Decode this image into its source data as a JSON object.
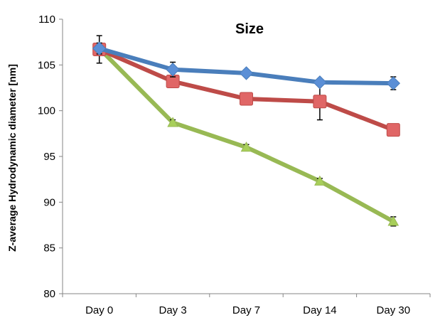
{
  "chart_data": {
    "type": "line",
    "title": "Size",
    "xlabel": "",
    "ylabel": "Z-average Hydrodynamic diameter  [nm]",
    "categories": [
      "Day 0",
      "Day 3",
      "Day 7",
      "Day 14",
      "Day 30"
    ],
    "ylim": [
      80,
      110
    ],
    "yticks": [
      80,
      85,
      90,
      95,
      100,
      105,
      110
    ],
    "grid": false,
    "legend": "none",
    "series": [
      {
        "color": "#4a7ebb",
        "marker_color": "#5b8fd6",
        "marker": "diamond",
        "values": [
          106.8,
          104.5,
          104.1,
          103.1,
          103.0
        ],
        "errors": [
          0.6,
          0.8,
          0.3,
          0.3,
          0.7
        ]
      },
      {
        "color": "#be4b48",
        "marker_color": "#e06666",
        "marker": "square",
        "values": [
          106.7,
          103.2,
          101.3,
          101.0,
          97.9
        ],
        "errors": [
          1.5,
          0.6,
          0.3,
          2.0,
          0.3
        ]
      },
      {
        "color": "#98b954",
        "marker_color": "#a8cf5a",
        "marker": "triangle",
        "values": [
          106.8,
          98.7,
          96.0,
          92.3,
          87.9
        ],
        "errors": [
          0.3,
          0.3,
          0.3,
          0.3,
          0.5
        ]
      }
    ]
  }
}
